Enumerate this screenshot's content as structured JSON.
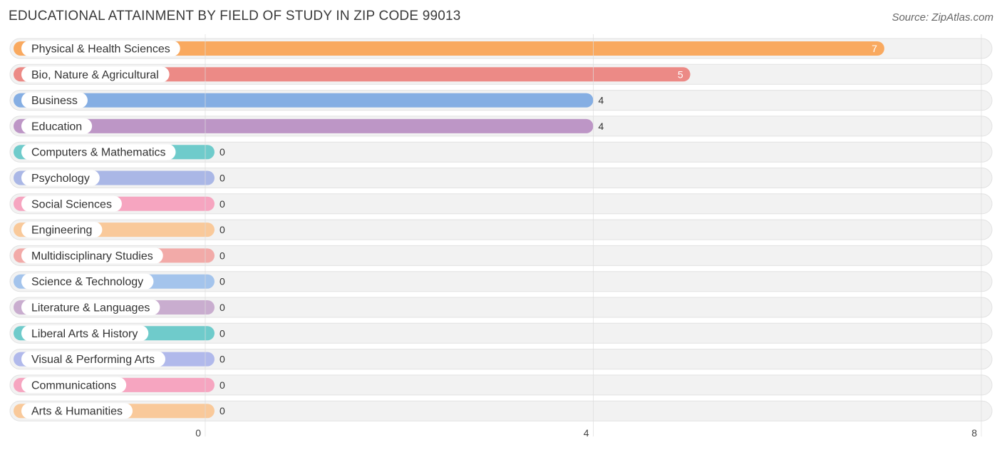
{
  "chart_data": {
    "type": "bar",
    "orientation": "horizontal",
    "title": "EDUCATIONAL ATTAINMENT BY FIELD OF STUDY IN ZIP CODE 99013",
    "source": "Source: ZipAtlas.com",
    "xlabel": "",
    "ylabel": "",
    "xlim": [
      0,
      8
    ],
    "x_ticks": [
      "0",
      "4",
      "8"
    ],
    "grid": true,
    "categories": [
      "Physical & Health Sciences",
      "Bio, Nature & Agricultural",
      "Business",
      "Education",
      "Computers & Mathematics",
      "Psychology",
      "Social Sciences",
      "Engineering",
      "Multidisciplinary Studies",
      "Science & Technology",
      "Literature & Languages",
      "Liberal Arts & History",
      "Visual & Performing Arts",
      "Communications",
      "Arts & Humanities"
    ],
    "values": [
      7,
      5,
      4,
      4,
      0,
      0,
      0,
      0,
      0,
      0,
      0,
      0,
      0,
      0,
      0
    ],
    "value_labels": [
      "7",
      "5",
      "4",
      "4",
      "0",
      "0",
      "0",
      "0",
      "0",
      "0",
      "0",
      "0",
      "0",
      "0",
      "0"
    ],
    "colors": [
      "#f9a95f",
      "#ec8a86",
      "#85aee3",
      "#bd96c6",
      "#6fcbcb",
      "#aab7e6",
      "#f6a5c0",
      "#f9c99a",
      "#f2aaa8",
      "#a4c4ec",
      "#c9adcf",
      "#6fcbcb",
      "#b1b9eb",
      "#f6a5c0",
      "#f9c99a"
    ]
  }
}
